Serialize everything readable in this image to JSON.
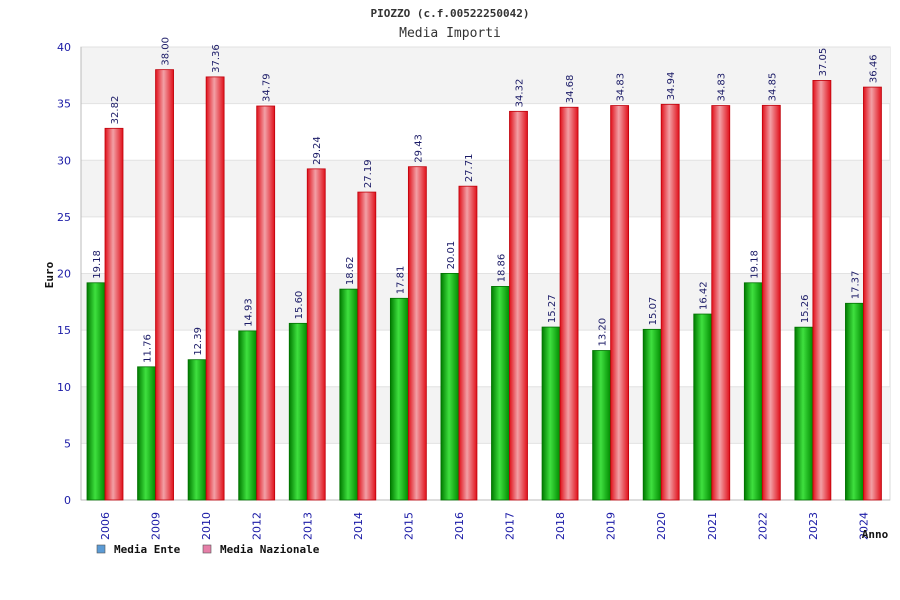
{
  "chart_data": {
    "type": "bar",
    "title": "PIOZZO (c.f.00522250042)",
    "subtitle": "Media Importi",
    "ylabel": "Euro",
    "xlabel": "Anno",
    "ylim": [
      0,
      40
    ],
    "yticks": [
      0,
      5,
      10,
      15,
      20,
      25,
      30,
      35,
      40
    ],
    "categories": [
      "2006",
      "2009",
      "2010",
      "2012",
      "2013",
      "2014",
      "2015",
      "2016",
      "2017",
      "2018",
      "2019",
      "2020",
      "2021",
      "2022",
      "2023",
      "2024"
    ],
    "series": [
      {
        "name": "Media Ente",
        "color": "#00b000",
        "values": [
          19.18,
          11.76,
          12.39,
          14.93,
          15.6,
          18.62,
          17.81,
          20.01,
          18.86,
          15.27,
          13.2,
          15.07,
          16.42,
          19.18,
          15.26,
          17.37
        ],
        "labels": [
          "19.18",
          "11.76",
          "12.39",
          "14.93",
          "15.60",
          "18.62",
          "17.81",
          "20.01",
          "18.86",
          "15.27",
          "13.20",
          "15.07",
          "16.42",
          "19.18",
          "15.26",
          "17.37"
        ]
      },
      {
        "name": "Media Nazionale",
        "color": "#e8141e",
        "values": [
          32.82,
          38.0,
          37.36,
          34.79,
          29.24,
          27.19,
          29.43,
          27.71,
          34.32,
          34.68,
          34.83,
          34.94,
          34.83,
          34.85,
          37.05,
          36.46
        ],
        "labels": [
          "32.82",
          "38.00",
          "37.36",
          "34.79",
          "29.24",
          "27.19",
          "29.43",
          "27.71",
          "34.32",
          "34.68",
          "34.83",
          "34.94",
          "34.83",
          "34.85",
          "37.05",
          "36.46"
        ]
      }
    ],
    "legend": [
      {
        "name": "Media Ente",
        "color": "#5b9bd5"
      },
      {
        "name": "Media Nazionale",
        "color": "#e67fa8"
      }
    ],
    "legend_position": "bottom-left",
    "grid": true
  }
}
